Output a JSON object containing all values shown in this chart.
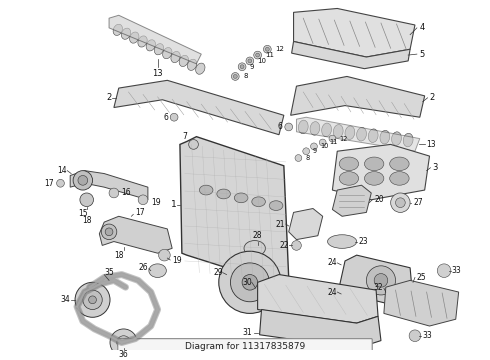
{
  "bg_color": "#ffffff",
  "diagram_label": "Diagram for 11317835879",
  "figsize": [
    4.9,
    3.6
  ],
  "dpi": 100,
  "label_color": "#222222",
  "line_color": "#555555",
  "part_fill": "#e8e8e8",
  "part_edge": "#444444"
}
